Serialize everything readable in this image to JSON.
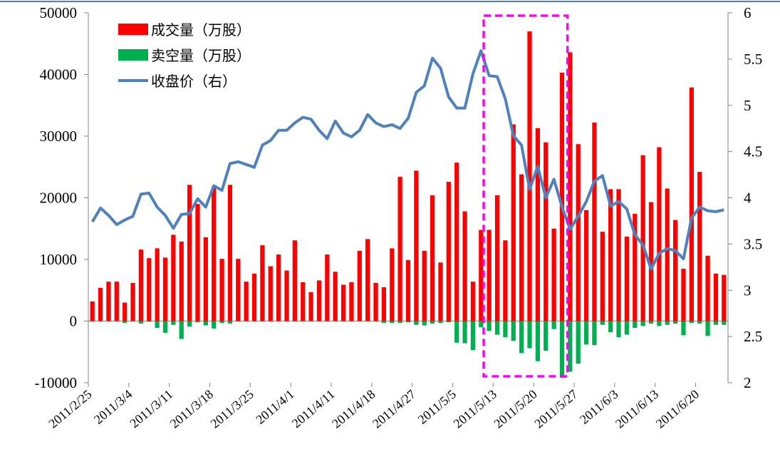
{
  "chart_data": {
    "type": "bar+line",
    "legend_placement": "top-left",
    "grid": false,
    "colors": {
      "volume": "#ff0000",
      "short": "#00b050",
      "close": "#4f81bd",
      "highlight": "#ff00ff"
    },
    "y_left": {
      "min": -10000,
      "max": 50000,
      "ticks": [
        "-10000",
        "0",
        "10000",
        "20000",
        "30000",
        "40000",
        "50000"
      ]
    },
    "y_right": {
      "min": 2,
      "max": 6,
      "ticks": [
        "2",
        "2.5",
        "3",
        "3.5",
        "4",
        "4.5",
        "5",
        "5.5",
        "6"
      ]
    },
    "x_ticks": [
      "2011/2/25",
      "2011/3/4",
      "2011/3/11",
      "2011/3/18",
      "2011/3/25",
      "2011/4/1",
      "2011/4/11",
      "2011/4/18",
      "2011/4/27",
      "2011/5/5",
      "2011/5/13",
      "2011/5/20",
      "2011/5/27",
      "2011/6/3",
      "2011/6/13",
      "2011/6/20"
    ],
    "x_tick_every": 5,
    "highlight_range": {
      "from_index": 49,
      "to_index": 59
    },
    "series": [
      {
        "name": "成交量（万股）",
        "type": "bar",
        "values": [
          3200,
          5400,
          6400,
          6400,
          3000,
          6200,
          11600,
          10200,
          11800,
          10300,
          14000,
          12900,
          22100,
          19000,
          13600,
          21800,
          10100,
          22100,
          10100,
          6400,
          7700,
          12300,
          8900,
          10800,
          8200,
          13100,
          6300,
          4700,
          6600,
          10800,
          8000,
          5900,
          6300,
          11400,
          13300,
          6200,
          5500,
          11800,
          23400,
          9900,
          24400,
          11400,
          20400,
          9500,
          22600,
          25700,
          17800,
          6400,
          14800,
          14800,
          20400,
          13100,
          31900,
          23800,
          47000,
          31300,
          29000,
          15000,
          40300,
          43600,
          28700,
          18000,
          32200,
          14500,
          21400,
          21400,
          13700,
          17400,
          26900,
          19300,
          28200,
          21500,
          16400,
          8500,
          37900,
          24200,
          10600,
          7700,
          7500
        ]
      },
      {
        "name": "卖空量（万股）",
        "type": "bar",
        "values": [
          0,
          0,
          0,
          0,
          -300,
          0,
          -400,
          -100,
          -1100,
          -1900,
          -600,
          -2900,
          -900,
          -200,
          -700,
          -1200,
          -300,
          -400,
          0,
          0,
          0,
          0,
          0,
          0,
          0,
          0,
          0,
          0,
          0,
          0,
          0,
          0,
          0,
          0,
          0,
          0,
          -300,
          -300,
          -300,
          -200,
          -600,
          -700,
          -400,
          -300,
          -200,
          -3500,
          -3600,
          -4700,
          -1000,
          -1600,
          -2200,
          -2600,
          -3200,
          -5200,
          -4400,
          -6500,
          -4800,
          -1300,
          -9200,
          -8200,
          -6900,
          -3800,
          -3900,
          -600,
          -1800,
          -2600,
          -2200,
          -1100,
          -800,
          -400,
          -800,
          -600,
          -400,
          -2300,
          -300,
          -400,
          -2400,
          -600,
          -600
        ]
      },
      {
        "name": "收盘价（右）",
        "type": "line",
        "values": [
          3.74,
          3.89,
          3.81,
          3.71,
          3.76,
          3.8,
          4.04,
          4.05,
          3.9,
          3.81,
          3.67,
          3.82,
          3.83,
          3.99,
          3.9,
          4.13,
          4.08,
          4.37,
          4.39,
          4.36,
          4.33,
          4.57,
          4.62,
          4.73,
          4.73,
          4.81,
          4.87,
          4.85,
          4.73,
          4.64,
          4.83,
          4.7,
          4.66,
          4.73,
          4.9,
          4.81,
          4.77,
          4.79,
          4.75,
          4.86,
          5.14,
          5.21,
          5.51,
          5.4,
          5.09,
          4.97,
          4.97,
          5.34,
          5.59,
          5.32,
          5.31,
          5.07,
          4.67,
          4.57,
          4.09,
          4.34,
          4.0,
          4.2,
          3.9,
          3.66,
          3.8,
          3.96,
          4.18,
          4.24,
          3.91,
          3.96,
          3.88,
          3.6,
          3.49,
          3.23,
          3.4,
          3.45,
          3.43,
          3.34,
          3.78,
          3.9,
          3.86,
          3.85,
          3.87
        ]
      }
    ]
  }
}
